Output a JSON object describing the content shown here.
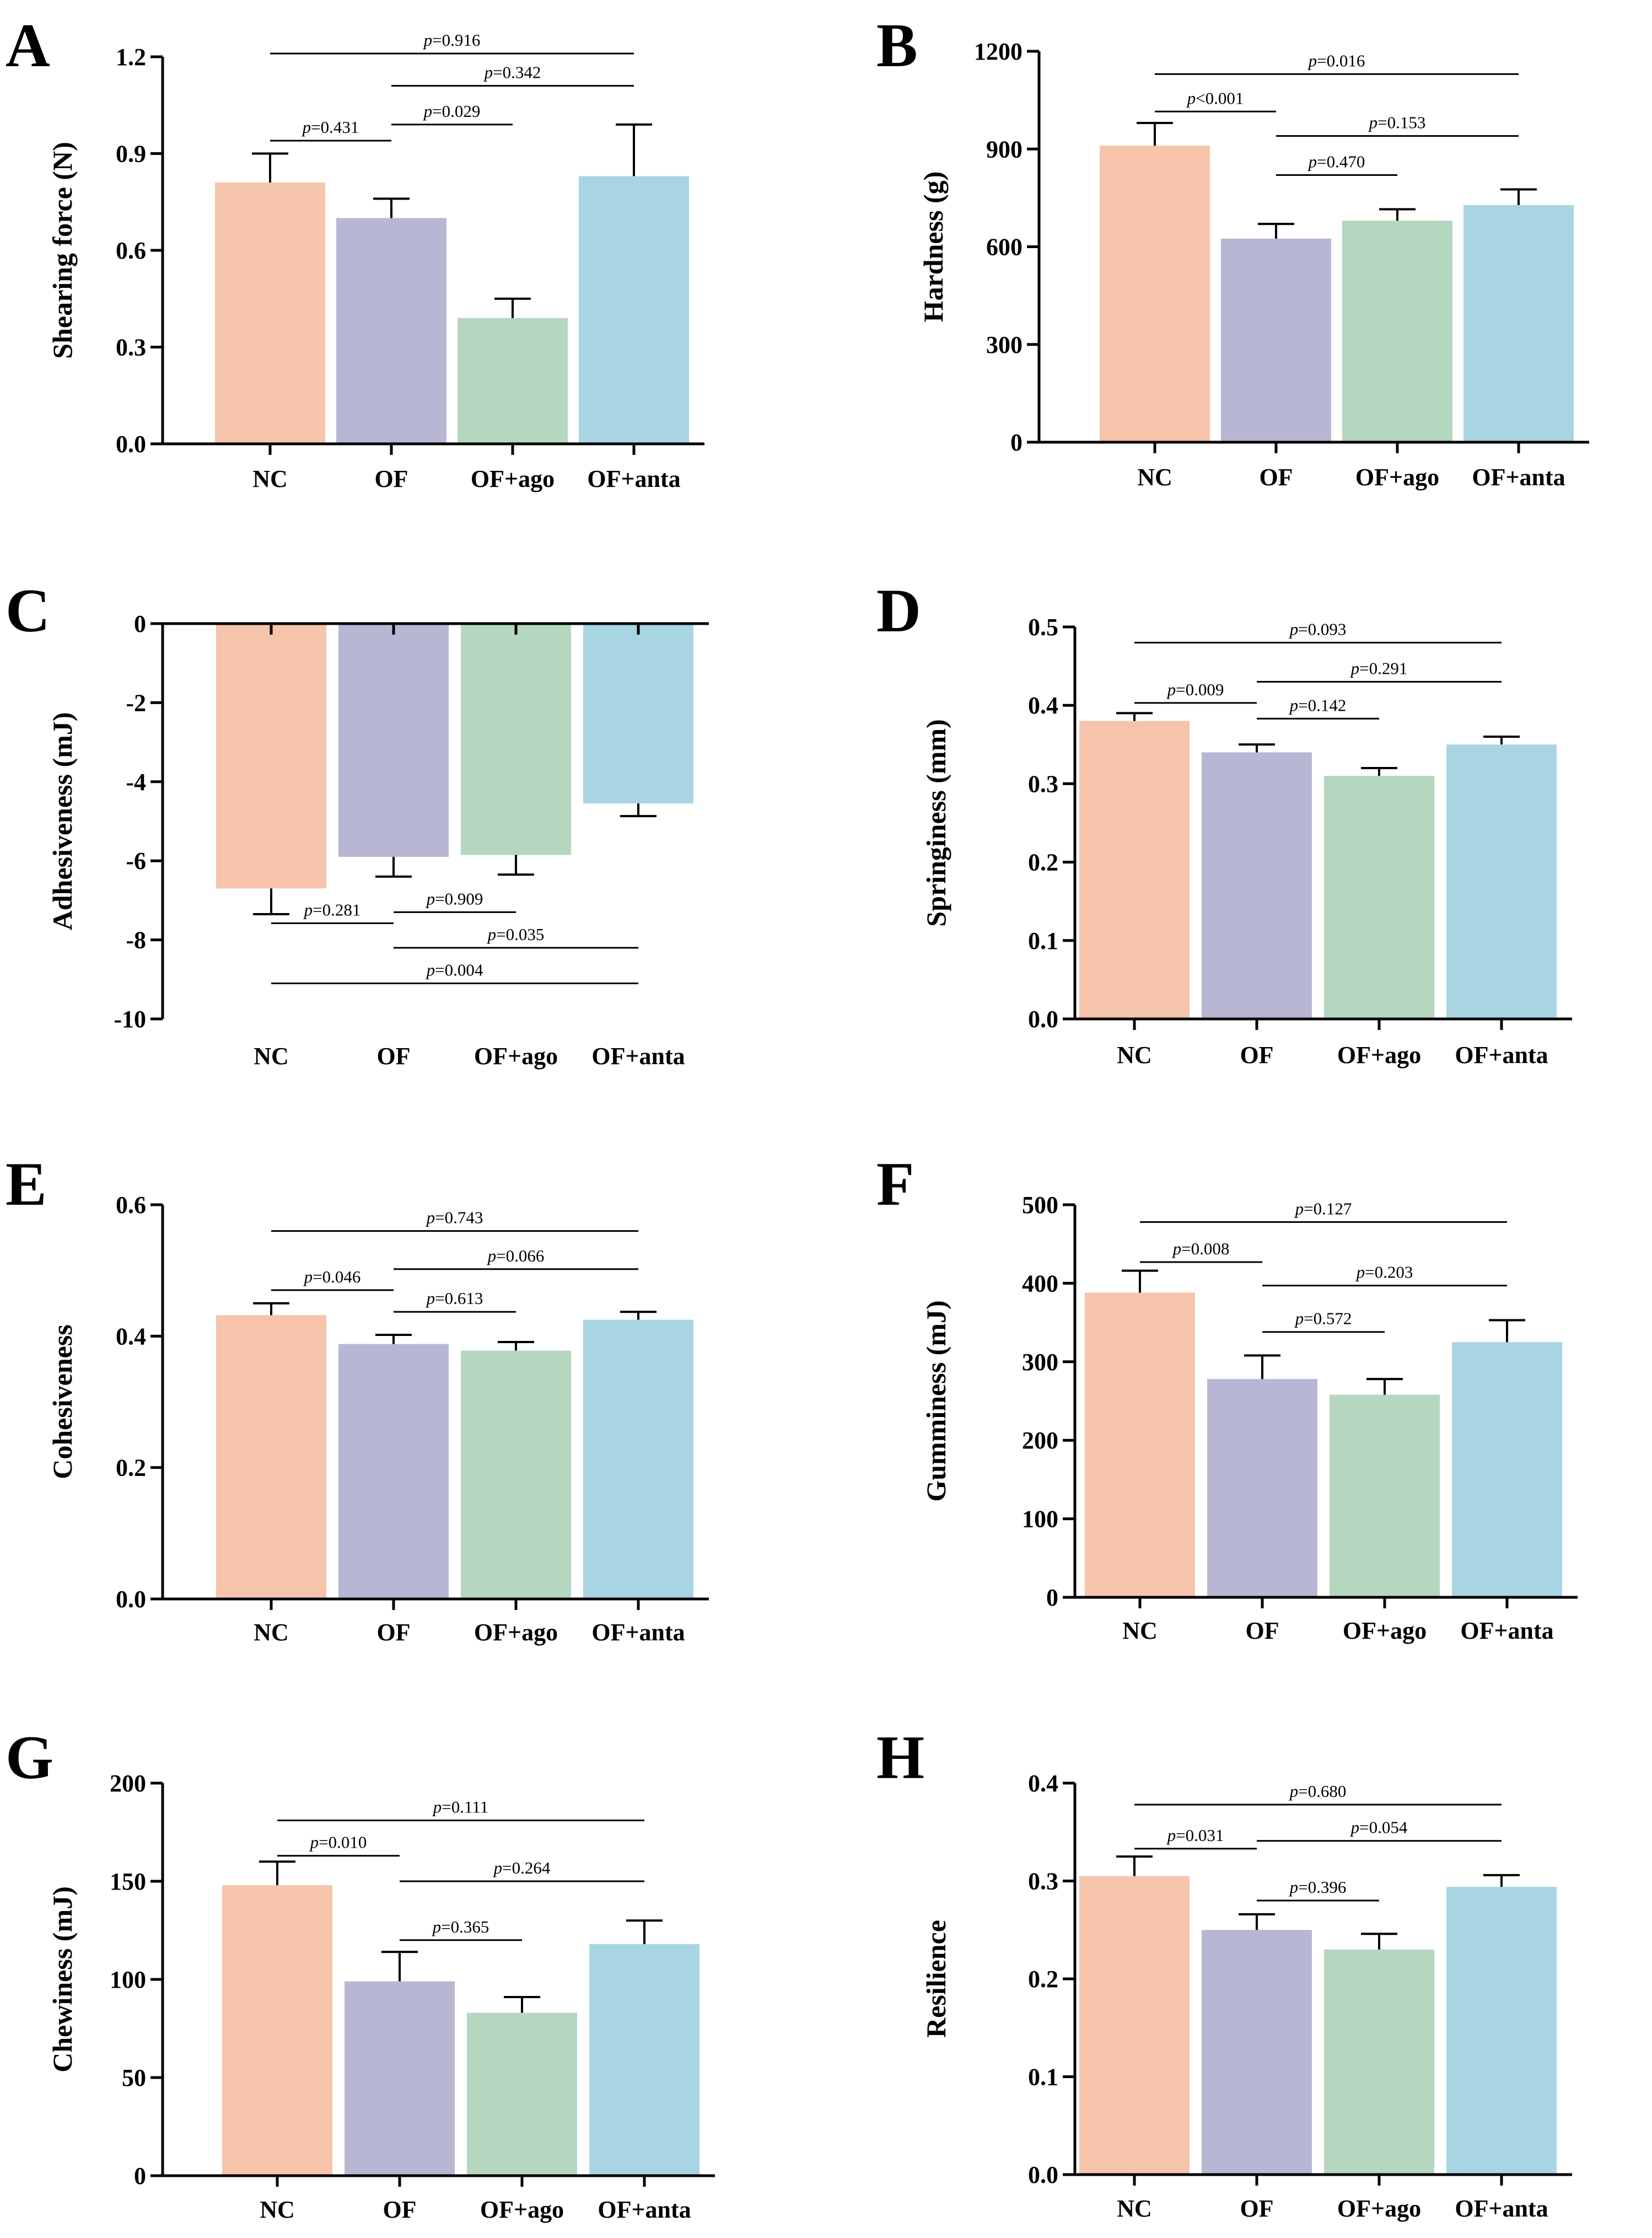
{
  "colors": {
    "NC": "#f5c4aa",
    "OF": "#b7b7d4",
    "OF+ago": "#b5d6bf",
    "OF+anta": "#a9d5e2",
    "axis": "#000000"
  },
  "chart_data": [
    {
      "panel": "A",
      "type": "bar",
      "ylabel": "Shearing force (N)",
      "categories": [
        "NC",
        "OF",
        "OF+ago",
        "OF+anta"
      ],
      "values": [
        0.81,
        0.7,
        0.39,
        0.83
      ],
      "errors": [
        0.09,
        0.06,
        0.06,
        0.16
      ],
      "ylim": [
        0,
        1.2
      ],
      "yticks": [
        "0.0",
        "0.3",
        "0.6",
        "0.9",
        "1.2"
      ],
      "ytick_values": [
        0,
        0.3,
        0.6,
        0.9,
        1.2
      ],
      "comparisons": [
        {
          "from": 0,
          "to": 1,
          "p": "=0.431",
          "level": 0.94
        },
        {
          "from": 1,
          "to": 2,
          "p": "=0.029",
          "level": 0.99
        },
        {
          "from": 1,
          "to": 3,
          "p": "=0.342",
          "level": 1.11
        },
        {
          "from": 0,
          "to": 3,
          "p": "=0.916",
          "level": 1.21
        }
      ]
    },
    {
      "panel": "B",
      "type": "bar",
      "ylabel": "Hardness (g)",
      "categories": [
        "NC",
        "OF",
        "OF+ago",
        "OF+anta"
      ],
      "values": [
        910,
        625,
        680,
        728
      ],
      "errors": [
        70,
        45,
        35,
        48
      ],
      "ylim": [
        0,
        1200
      ],
      "yticks": [
        "0",
        "300",
        "600",
        "900",
        "1200"
      ],
      "ytick_values": [
        0,
        300,
        600,
        900,
        1200
      ],
      "comparisons": [
        {
          "from": 1,
          "to": 2,
          "p": "=0.470",
          "level": 820
        },
        {
          "from": 1,
          "to": 3,
          "p": "=0.153",
          "level": 940
        },
        {
          "from": 0,
          "to": 1,
          "p": "<0.001",
          "level": 1015
        },
        {
          "from": 0,
          "to": 3,
          "p": "=0.016",
          "level": 1130
        }
      ]
    },
    {
      "panel": "C",
      "type": "bar",
      "ylabel": "Adhesiveness (mJ)",
      "categories": [
        "NC",
        "OF",
        "OF+ago",
        "OF+anta"
      ],
      "values": [
        -6.7,
        -5.9,
        -5.85,
        -4.55
      ],
      "errors": [
        0.65,
        0.5,
        0.5,
        0.32
      ],
      "ylim": [
        -10,
        0
      ],
      "yticks": [
        "-10",
        "-8",
        "-6",
        "-4",
        "-2",
        "0"
      ],
      "ytick_values": [
        -10,
        -8,
        -6,
        -4,
        -2,
        0
      ],
      "comparisons": [
        {
          "from": 1,
          "to": 2,
          "p": "=0.909",
          "level": -7.3
        },
        {
          "from": 0,
          "to": 1,
          "p": "=0.281",
          "level": -7.58
        },
        {
          "from": 1,
          "to": 3,
          "p": "=0.035",
          "level": -8.2
        },
        {
          "from": 0,
          "to": 3,
          "p": "=0.004",
          "level": -9.1
        }
      ]
    },
    {
      "panel": "D",
      "type": "bar",
      "ylabel": "Springiness (mm)",
      "categories": [
        "NC",
        "OF",
        "OF+ago",
        "OF+anta"
      ],
      "values": [
        0.38,
        0.34,
        0.31,
        0.35
      ],
      "errors": [
        0.01,
        0.01,
        0.01,
        0.01
      ],
      "ylim": [
        0,
        0.5
      ],
      "yticks": [
        "0.0",
        "0.1",
        "0.2",
        "0.3",
        "0.4",
        "0.5"
      ],
      "ytick_values": [
        0,
        0.1,
        0.2,
        0.3,
        0.4,
        0.5
      ],
      "comparisons": [
        {
          "from": 1,
          "to": 2,
          "p": "=0.142",
          "level": 0.383
        },
        {
          "from": 0,
          "to": 1,
          "p": "=0.009",
          "level": 0.403
        },
        {
          "from": 1,
          "to": 3,
          "p": "=0.291",
          "level": 0.43
        },
        {
          "from": 0,
          "to": 3,
          "p": "=0.093",
          "level": 0.48
        }
      ]
    },
    {
      "panel": "E",
      "type": "bar",
      "ylabel": "Cohesiveness",
      "categories": [
        "NC",
        "OF",
        "OF+ago",
        "OF+anta"
      ],
      "values": [
        0.432,
        0.388,
        0.378,
        0.425
      ],
      "errors": [
        0.018,
        0.014,
        0.013,
        0.012
      ],
      "ylim": [
        0,
        0.6
      ],
      "yticks": [
        "0.0",
        "0.2",
        "0.4",
        "0.6"
      ],
      "ytick_values": [
        0,
        0.2,
        0.4,
        0.6
      ],
      "comparisons": [
        {
          "from": 1,
          "to": 2,
          "p": "=0.613",
          "level": 0.437
        },
        {
          "from": 0,
          "to": 1,
          "p": "=0.046",
          "level": 0.47
        },
        {
          "from": 1,
          "to": 3,
          "p": "=0.066",
          "level": 0.502
        },
        {
          "from": 0,
          "to": 3,
          "p": "=0.743",
          "level": 0.56
        }
      ]
    },
    {
      "panel": "F",
      "type": "bar",
      "ylabel": "Gumminess (mJ)",
      "categories": [
        "NC",
        "OF",
        "OF+ago",
        "OF+anta"
      ],
      "values": [
        388,
        278,
        258,
        325
      ],
      "errors": [
        28,
        30,
        20,
        28
      ],
      "ylim": [
        0,
        500
      ],
      "yticks": [
        "0",
        "100",
        "200",
        "300",
        "400",
        "500"
      ],
      "ytick_values": [
        0,
        100,
        200,
        300,
        400,
        500
      ],
      "comparisons": [
        {
          "from": 1,
          "to": 2,
          "p": "=0.572",
          "level": 338
        },
        {
          "from": 1,
          "to": 3,
          "p": "=0.203",
          "level": 397
        },
        {
          "from": 0,
          "to": 1,
          "p": "=0.008",
          "level": 427
        },
        {
          "from": 0,
          "to": 3,
          "p": "=0.127",
          "level": 478
        }
      ]
    },
    {
      "panel": "G",
      "type": "bar",
      "ylabel": "Chewiness (mJ)",
      "categories": [
        "NC",
        "OF",
        "OF+ago",
        "OF+anta"
      ],
      "values": [
        148,
        99,
        83,
        118
      ],
      "errors": [
        12,
        15,
        8,
        12
      ],
      "ylim": [
        0,
        200
      ],
      "yticks": [
        "0",
        "50",
        "100",
        "150",
        "200"
      ],
      "ytick_values": [
        0,
        50,
        100,
        150,
        200
      ],
      "comparisons": [
        {
          "from": 1,
          "to": 2,
          "p": "=0.365",
          "level": 120
        },
        {
          "from": 1,
          "to": 3,
          "p": "=0.264",
          "level": 150
        },
        {
          "from": 0,
          "to": 1,
          "p": "=0.010",
          "level": 163
        },
        {
          "from": 0,
          "to": 3,
          "p": "=0.111",
          "level": 181
        }
      ]
    },
    {
      "panel": "H",
      "type": "bar",
      "ylabel": "Resilience",
      "categories": [
        "NC",
        "OF",
        "OF+ago",
        "OF+anta"
      ],
      "values": [
        0.305,
        0.25,
        0.23,
        0.294
      ],
      "errors": [
        0.02,
        0.016,
        0.016,
        0.012
      ],
      "ylim": [
        0,
        0.4
      ],
      "yticks": [
        "0.0",
        "0.1",
        "0.2",
        "0.3",
        "0.4"
      ],
      "ytick_values": [
        0,
        0.1,
        0.2,
        0.3,
        0.4
      ],
      "comparisons": [
        {
          "from": 1,
          "to": 2,
          "p": "=0.396",
          "level": 0.28
        },
        {
          "from": 0,
          "to": 1,
          "p": "=0.031",
          "level": 0.333
        },
        {
          "from": 1,
          "to": 3,
          "p": "=0.054",
          "level": 0.341
        },
        {
          "from": 0,
          "to": 3,
          "p": "=0.680",
          "level": 0.378
        }
      ]
    }
  ]
}
